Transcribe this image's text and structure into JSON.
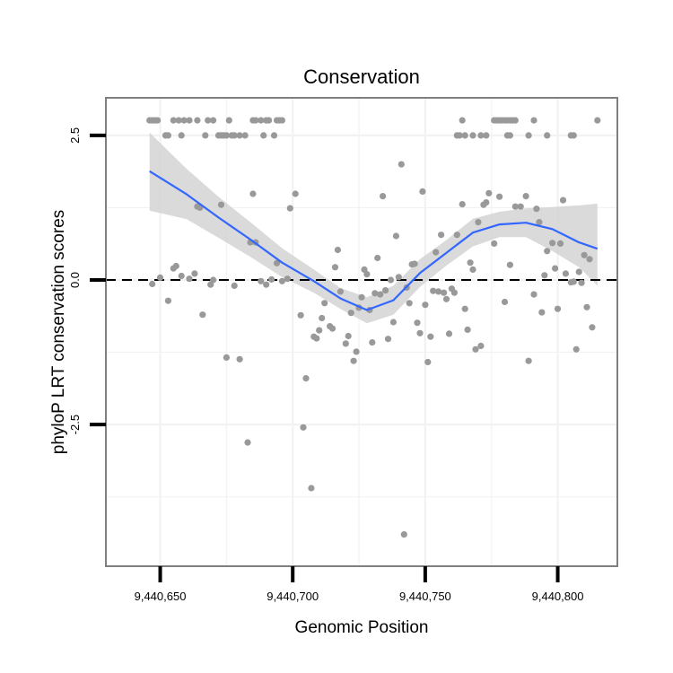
{
  "chart_data": {
    "type": "scatter",
    "title": "Conservation",
    "xlabel": "Genomic Position",
    "ylabel": "phyloP LRT conservation scores",
    "xlim": [
      9440629.5,
      9440822.5
    ],
    "ylim": [
      -4.95,
      3.15
    ],
    "x_ticks": [
      {
        "value": 9440650,
        "label": "9,440,650"
      },
      {
        "value": 9440700,
        "label": "9,440,700"
      },
      {
        "value": 9440750,
        "label": "9,440,750"
      },
      {
        "value": 9440800,
        "label": "9,440,800"
      }
    ],
    "y_ticks": [
      {
        "value": 2.5,
        "label": "2.5"
      },
      {
        "value": 0.0,
        "label": "0.0"
      },
      {
        "value": -2.5,
        "label": "-2.5"
      }
    ],
    "grid": true,
    "reference_line": {
      "y": 0,
      "style": "dashed"
    },
    "colors": {
      "points": "#999999",
      "smooth": "#3366FF",
      "band": "#D3D3D3",
      "grid": "#F2F2F2",
      "border": "#7F7F7F"
    },
    "points": [
      [
        9440646,
        2.76
      ],
      [
        9440647,
        2.76
      ],
      [
        9440648,
        2.76
      ],
      [
        9440649,
        2.76
      ],
      [
        9440652,
        2.5
      ],
      [
        9440653,
        2.5
      ],
      [
        9440655,
        2.76
      ],
      [
        9440657,
        2.76
      ],
      [
        9440658,
        2.5
      ],
      [
        9440659,
        2.76
      ],
      [
        9440661,
        2.76
      ],
      [
        9440664,
        2.76
      ],
      [
        9440667,
        2.5
      ],
      [
        9440668,
        2.76
      ],
      [
        9440670,
        2.76
      ],
      [
        9440672,
        2.5
      ],
      [
        9440673,
        2.5
      ],
      [
        9440674,
        2.5
      ],
      [
        9440675,
        2.5
      ],
      [
        9440676,
        2.76
      ],
      [
        9440677,
        2.5
      ],
      [
        9440678,
        2.5
      ],
      [
        9440680,
        2.5
      ],
      [
        9440682,
        2.5
      ],
      [
        9440685,
        2.76
      ],
      [
        9440686,
        2.76
      ],
      [
        9440688,
        2.76
      ],
      [
        9440689,
        2.5
      ],
      [
        9440690,
        2.76
      ],
      [
        9440691,
        2.76
      ],
      [
        9440693,
        2.5
      ],
      [
        9440694,
        2.76
      ],
      [
        9440695,
        2.76
      ],
      [
        9440696,
        2.76
      ],
      [
        9440764,
        2.76
      ],
      [
        9440762,
        2.5
      ],
      [
        9440763,
        2.5
      ],
      [
        9440765,
        2.5
      ],
      [
        9440768,
        2.5
      ],
      [
        9440771,
        2.5
      ],
      [
        9440773,
        2.5
      ],
      [
        9440776,
        2.76
      ],
      [
        9440777,
        2.76
      ],
      [
        9440778,
        2.76
      ],
      [
        9440779,
        2.76
      ],
      [
        9440780,
        2.76
      ],
      [
        9440781,
        2.76
      ],
      [
        9440782,
        2.76
      ],
      [
        9440783,
        2.76
      ],
      [
        9440784,
        2.76
      ],
      [
        9440781,
        2.5
      ],
      [
        9440782,
        2.5
      ],
      [
        9440789,
        2.5
      ],
      [
        9440791,
        2.76
      ],
      [
        9440796,
        2.5
      ],
      [
        9440805,
        2.5
      ],
      [
        9440806,
        2.5
      ],
      [
        9440815,
        2.76
      ],
      [
        9440647,
        -0.07
      ],
      [
        9440650,
        0.04
      ],
      [
        9440653,
        -0.36
      ],
      [
        9440655,
        0.2
      ],
      [
        9440656,
        0.24
      ],
      [
        9440658,
        0.07
      ],
      [
        9440661,
        0.02
      ],
      [
        9440663,
        0.11
      ],
      [
        9440664,
        1.27
      ],
      [
        9440665,
        1.25
      ],
      [
        9440666,
        -0.6
      ],
      [
        9440669,
        -0.08
      ],
      [
        9440670,
        0.0
      ],
      [
        9440673,
        1.3
      ],
      [
        9440675,
        -1.34
      ],
      [
        9440678,
        -0.1
      ],
      [
        9440680,
        -1.37
      ],
      [
        9440683,
        -2.81
      ],
      [
        9440685,
        1.49
      ],
      [
        9440686,
        0.65
      ],
      [
        9440684,
        0.65
      ],
      [
        9440688,
        -0.02
      ],
      [
        9440690,
        -0.08
      ],
      [
        9440692,
        0.01
      ],
      [
        9440694,
        0.29
      ],
      [
        9440696,
        -0.02
      ],
      [
        9440698,
        0.02
      ],
      [
        9440699,
        1.24
      ],
      [
        9440701,
        1.49
      ],
      [
        9440703,
        -0.61
      ],
      [
        9440704,
        -2.55
      ],
      [
        9440705,
        -1.7
      ],
      [
        9440707,
        -3.6
      ],
      [
        9440708,
        -0.98
      ],
      [
        9440709,
        -1.01
      ],
      [
        9440710,
        -0.87
      ],
      [
        9440711,
        -0.66
      ],
      [
        9440712,
        -0.4
      ],
      [
        9440714,
        -0.8
      ],
      [
        9440715,
        -0.84
      ],
      [
        9440716,
        0.22
      ],
      [
        9440717,
        0.52
      ],
      [
        9440718,
        -0.2
      ],
      [
        9440720,
        -1.1
      ],
      [
        9440721,
        -0.97
      ],
      [
        9440722,
        -0.57
      ],
      [
        9440723,
        -1.4
      ],
      [
        9440724,
        -1.24
      ],
      [
        9440725,
        -0.48
      ],
      [
        9440726,
        -0.3
      ],
      [
        9440727,
        0.18
      ],
      [
        9440728,
        0.1
      ],
      [
        9440729,
        -0.52
      ],
      [
        9440730,
        -1.08
      ],
      [
        9440731,
        -0.23
      ],
      [
        9440732,
        0.38
      ],
      [
        9440733,
        -0.25
      ],
      [
        9440734,
        1.45
      ],
      [
        9440735,
        -0.18
      ],
      [
        9440736,
        -1.02
      ],
      [
        9440737,
        0.0
      ],
      [
        9440738,
        -0.73
      ],
      [
        9440739,
        0.76
      ],
      [
        9440740,
        0.05
      ],
      [
        9440741,
        2.0
      ],
      [
        9440742,
        -4.4
      ],
      [
        9440743,
        -0.13
      ],
      [
        9440744,
        -0.4
      ],
      [
        9440745,
        0.27
      ],
      [
        9440746,
        0.28
      ],
      [
        9440747,
        -0.74
      ],
      [
        9440748,
        -0.92
      ],
      [
        9440749,
        1.53
      ],
      [
        9440750,
        -0.43
      ],
      [
        9440751,
        -1.42
      ],
      [
        9440752,
        -0.98
      ],
      [
        9440753,
        -0.19
      ],
      [
        9440754,
        0.48
      ],
      [
        9440755,
        -0.2
      ],
      [
        9440756,
        0.78
      ],
      [
        9440757,
        -0.22
      ],
      [
        9440758,
        -0.33
      ],
      [
        9440759,
        -0.93
      ],
      [
        9440760,
        -0.15
      ],
      [
        9440761,
        -0.22
      ],
      [
        9440762,
        0.78
      ],
      [
        9440764,
        1.31
      ],
      [
        9440765,
        -0.5
      ],
      [
        9440766,
        -0.86
      ],
      [
        9440767,
        0.3
      ],
      [
        9440768,
        0.18
      ],
      [
        9440769,
        -1.2
      ],
      [
        9440770,
        1.0
      ],
      [
        9440771,
        -1.14
      ],
      [
        9440772,
        1.3
      ],
      [
        9440773,
        1.34
      ],
      [
        9440774,
        1.5
      ],
      [
        9440776,
        0.63
      ],
      [
        9440778,
        1.44
      ],
      [
        9440780,
        -0.38
      ],
      [
        9440782,
        0.26
      ],
      [
        9440784,
        1.27
      ],
      [
        9440786,
        1.27
      ],
      [
        9440788,
        1.45
      ],
      [
        9440789,
        -1.4
      ],
      [
        9440791,
        -0.25
      ],
      [
        9440792,
        1.23
      ],
      [
        9440793,
        1.0
      ],
      [
        9440794,
        -0.56
      ],
      [
        9440795,
        0.08
      ],
      [
        9440796,
        0.5
      ],
      [
        9440798,
        0.64
      ],
      [
        9440799,
        0.2
      ],
      [
        9440800,
        -0.5
      ],
      [
        9440801,
        0.63
      ],
      [
        9440802,
        1.38
      ],
      [
        9440803,
        0.11
      ],
      [
        9440805,
        -0.04
      ],
      [
        9440806,
        -0.03
      ],
      [
        9440807,
        -1.2
      ],
      [
        9440808,
        0.14
      ],
      [
        9440809,
        -0.05
      ],
      [
        9440810,
        0.43
      ],
      [
        9440811,
        -0.47
      ],
      [
        9440812,
        0.36
      ],
      [
        9440813,
        -0.82
      ]
    ],
    "smooth": {
      "x": [
        9440646,
        9440660,
        9440672,
        9440684,
        9440696,
        9440708,
        9440718,
        9440728,
        9440738,
        9440748,
        9440758,
        9440768,
        9440778,
        9440788,
        9440798,
        9440808,
        9440815
      ],
      "y": [
        1.88,
        1.48,
        1.08,
        0.7,
        0.3,
        -0.02,
        -0.32,
        -0.52,
        -0.35,
        0.12,
        0.47,
        0.82,
        0.96,
        0.99,
        0.88,
        0.65,
        0.54
      ],
      "lower": [
        1.2,
        1.05,
        0.73,
        0.4,
        0.05,
        -0.22,
        -0.5,
        -0.75,
        -0.6,
        -0.12,
        0.25,
        0.58,
        0.74,
        0.74,
        0.5,
        0.22,
        -0.1
      ],
      "upper": [
        2.55,
        1.92,
        1.44,
        1.0,
        0.55,
        0.18,
        -0.14,
        -0.3,
        -0.1,
        0.36,
        0.69,
        1.06,
        1.18,
        1.24,
        1.26,
        1.29,
        1.32
      ]
    }
  }
}
